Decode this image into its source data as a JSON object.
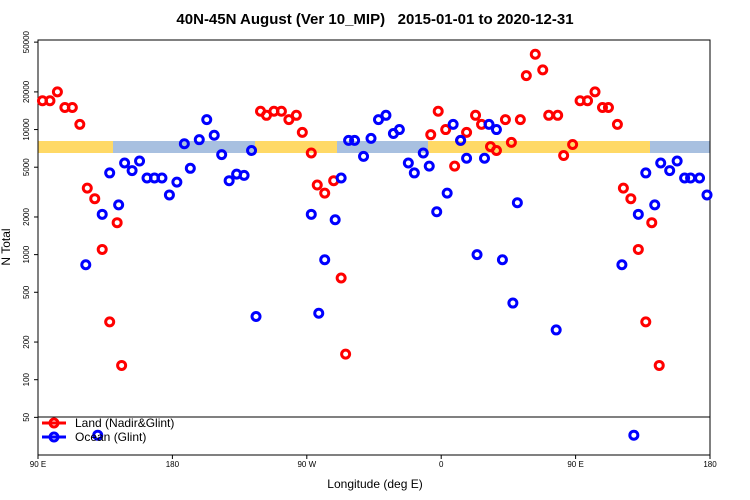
{
  "chart_data": {
    "type": "scatter",
    "title": "40N-45N August (Ver 10_MIP)   2015-01-01 to 2020-12-31",
    "x_label": "Longitude (deg E)",
    "y_label": "N Total",
    "log_y": true,
    "xlim": [
      90,
      540
    ],
    "xticks": [
      {
        "value": 90,
        "label": "90 E"
      },
      180,
      {
        "value": 270,
        "label": "90 W"
      },
      {
        "value": 360,
        "label": "0"
      },
      {
        "value": 450,
        "label": "90 E"
      },
      {
        "value": 540,
        "label": "180"
      }
    ],
    "ylim": [
      25,
      52000
    ],
    "yticks": [
      50,
      100,
      200,
      500,
      1000,
      2000,
      5000,
      10000,
      20000,
      50000
    ],
    "legend": "bottom-left",
    "series": [
      {
        "name": "Land (Nadir&Glint)",
        "color": "#ff0000",
        "x": [
          93,
          98,
          103,
          108,
          113,
          118,
          123,
          128,
          133,
          138,
          143,
          146,
          239,
          243,
          248,
          253,
          258,
          263,
          267,
          273,
          277,
          282,
          288,
          293,
          296,
          353,
          358,
          363,
          369,
          373,
          377,
          383,
          387,
          393,
          397,
          403,
          407,
          413,
          417,
          423,
          428,
          432,
          438,
          442,
          448,
          453,
          458,
          463,
          468,
          472,
          478,
          482,
          487,
          492,
          497,
          501,
          506
        ],
        "values": [
          17000,
          17000,
          20000,
          15000,
          15000,
          11000,
          3400,
          2800,
          1100,
          290,
          1800,
          130,
          14000,
          13000,
          14000,
          14000,
          12000,
          13000,
          9500,
          6500,
          3600,
          3100,
          3900,
          650,
          160,
          9100,
          14000,
          10000,
          5100,
          8200,
          9500,
          13000,
          11000,
          7300,
          6800,
          12000,
          7900,
          12000,
          27000,
          40000,
          30000,
          13000,
          13000,
          6200,
          7600,
          17000,
          17000,
          20000,
          15000,
          15000,
          11000,
          3400,
          2800,
          1100,
          290,
          1800,
          130
        ]
      },
      {
        "name": "Ocean (Glint)",
        "color": "#0000ff",
        "x": [
          122,
          130,
          133,
          138,
          144,
          148,
          153,
          158,
          163,
          168,
          173,
          178,
          183,
          188,
          192,
          198,
          203,
          208,
          213,
          218,
          223,
          228,
          233,
          236,
          273,
          278,
          282,
          289,
          293,
          298,
          302,
          308,
          313,
          318,
          323,
          328,
          332,
          338,
          342,
          348,
          352,
          357,
          364,
          368,
          373,
          377,
          384,
          389,
          392,
          397,
          401,
          408,
          411,
          437,
          481,
          489,
          492,
          497,
          503,
          507,
          513,
          518,
          523,
          527,
          533,
          538
        ],
        "values": [
          830,
          36,
          2100,
          4500,
          2500,
          5400,
          4700,
          5600,
          4100,
          4100,
          4100,
          3000,
          3800,
          7700,
          4900,
          8300,
          12000,
          9000,
          6300,
          3900,
          4400,
          4300,
          6800,
          320,
          2100,
          340,
          910,
          1900,
          4100,
          8200,
          8200,
          6100,
          8500,
          12000,
          13000,
          9300,
          10000,
          5400,
          4500,
          6500,
          5100,
          2200,
          3100,
          11000,
          8200,
          5900,
          1000,
          5900,
          11000,
          10000,
          910,
          410,
          2600,
          250,
          830,
          36,
          2100,
          4500,
          2500,
          5400,
          4700,
          5600,
          4100,
          4100,
          4100,
          3000
        ]
      }
    ]
  }
}
